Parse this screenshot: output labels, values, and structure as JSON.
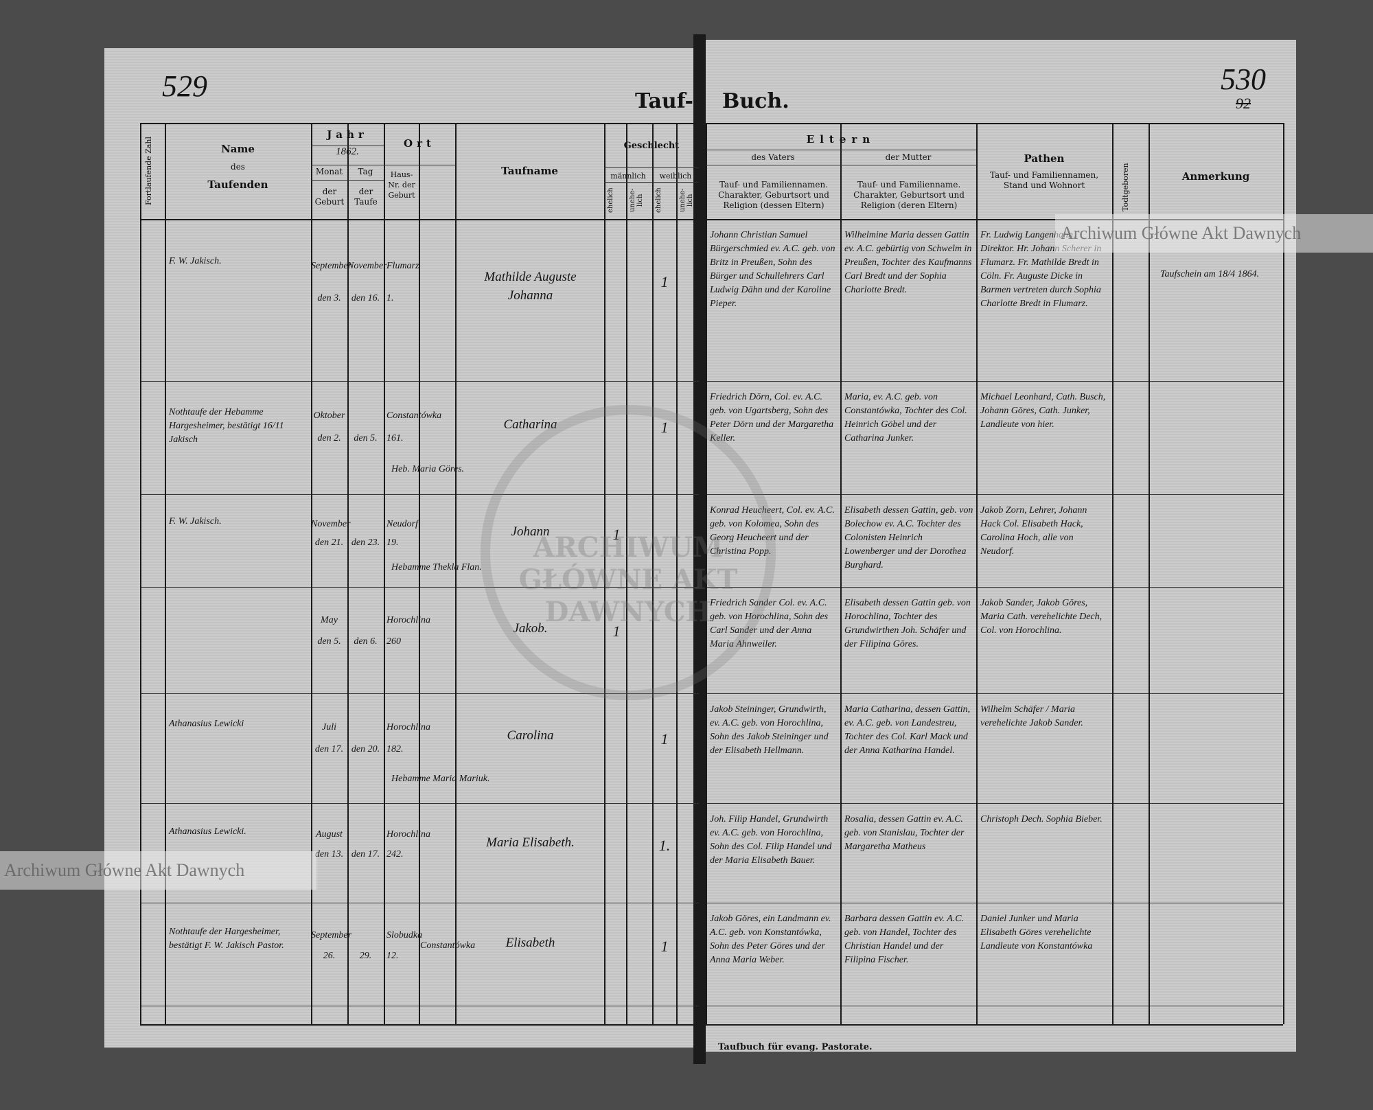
{
  "title": {
    "left": "Tauf-",
    "right": "Buch."
  },
  "page_numbers": {
    "left": "529",
    "right": "530",
    "right_old_crossed": "92"
  },
  "watermark": "Archiwum Główne Akt Dawnych",
  "seal_text": "ARCHIWUM GŁÓWNE AKT DAWNYCH",
  "footer": "Taufbuch für evang. Pastorate.",
  "headers": {
    "fortlaufende_zahl": "Fortlaufende Zahl",
    "name": [
      "Name",
      "des",
      "Taufenden"
    ],
    "jahr": "Jahr",
    "year_value": "1862.",
    "monat": "Monat",
    "tag": "Tag",
    "der_geburt": "der Geburt",
    "der_taufe": "der Taufe",
    "ort": "Ort",
    "haus_nr_geburt": "Haus-Nr. der Geburt",
    "ort_der_taufe": "der Taufe",
    "taufname": "Taufname",
    "geschlecht": "Geschlecht",
    "maennlich": "männlich",
    "weiblich": "weiblich",
    "ehelich": "ehelich",
    "unehelich": "unehe-lich",
    "eltern": "Eltern",
    "des_vaters": "des Vaters",
    "der_mutter": "der Mutter",
    "vater_desc": "Tauf- und Familiennamen. Charakter, Geburtsort und Religion (dessen Eltern)",
    "mutter_desc": "Tauf- und Familienname. Charakter, Geburtsort und Religion (deren Eltern)",
    "pathen": "Pathen",
    "pathen_desc": "Tauf- und Familiennamen, Stand und Wohnort",
    "todtgeboren": "Todtgeboren",
    "anmerkung": "Anmerkung"
  },
  "entries": [
    {
      "name": "F. W. Jakisch.",
      "monat": "September",
      "tag": "November",
      "geburt_tag": "den 3.",
      "taufe_tag": "den 16.",
      "ort": "Flumarz",
      "haus_nr": "1.",
      "ort_taufe": "",
      "taufname": "Mathilde Auguste Johanna",
      "hebamme": "",
      "gender_col": 2,
      "mark": "1",
      "vater": "Johann Christian Samuel Bürgerschmied ev. A.C. geb. von Britz in Preußen, Sohn des Bürger und Schullehrers Carl Ludwig Dähn und der Karoline Pieper.",
      "mutter": "Wilhelmine Maria dessen Gattin ev. A.C. gebürtig von Schwelm in Preußen, Tochter des Kaufmanns Carl Bredt und der Sophia Charlotte Bredt.",
      "pathen": "Fr. Ludwig Langenhahn, Direktor. Hr. Johann Scherer in Flumarz. Fr. Mathilde Bredt in Cöln. Fr. Auguste Dicke in Barmen vertreten durch Sophia Charlotte Bredt in Flumarz.",
      "anmerkung": "Taufschein am 18/4 1864."
    },
    {
      "name": "Nothtaufe der Hebamme Hargesheimer, bestätigt 16/11 Jakisch",
      "monat": "Oktober",
      "tag": "",
      "geburt_tag": "den 2.",
      "taufe_tag": "den 5.",
      "ort": "Constantówka",
      "haus_nr": "161.",
      "ort_taufe": "",
      "taufname": "Catharina",
      "hebamme": "Heb. Maria Göres.",
      "gender_col": 2,
      "mark": "1",
      "vater": "Friedrich Dörn, Col. ev. A.C. geb. von Ugartsberg, Sohn des Peter Dörn und der Margaretha Keller.",
      "mutter": "Maria, ev. A.C. geb. von Constantówka, Tochter des Col. Heinrich Göbel und der Catharina Junker.",
      "pathen": "Michael Leonhard, Cath. Busch, Johann Göres, Cath. Junker, Landleute von hier.",
      "anmerkung": ""
    },
    {
      "name": "F. W. Jakisch.",
      "monat": "November",
      "tag": "",
      "geburt_tag": "den 21.",
      "taufe_tag": "den 23.",
      "ort": "Neudorf",
      "haus_nr": "19.",
      "ort_taufe": "",
      "taufname": "Johann",
      "hebamme": "Hebamme Thekla Flan.",
      "gender_col": 0,
      "mark": "1",
      "vater": "Konrad Heucheert, Col. ev. A.C. geb. von Kolomea, Sohn des Georg Heucheert und der Christina Popp.",
      "mutter": "Elisabeth dessen Gattin, geb. von Bolechow ev. A.C. Tochter des Colonisten Heinrich Lowenberger und der Dorothea Burghard.",
      "pathen": "Jakob Zorn, Lehrer, Johann Hack Col. Elisabeth Hack, Carolina Hoch, alle von Neudorf.",
      "anmerkung": ""
    },
    {
      "name": "",
      "monat": "May",
      "tag": "",
      "geburt_tag": "den 5.",
      "taufe_tag": "den 6.",
      "ort": "Horochlina",
      "haus_nr": "260",
      "ort_taufe": "",
      "taufname": "Jakob.",
      "hebamme": "",
      "gender_col": 0,
      "mark": "1",
      "vater": "Friedrich Sander Col. ev. A.C. geb. von Horochlina, Sohn des Carl Sander und der Anna Maria Ahnweiler.",
      "mutter": "Elisabeth dessen Gattin geb. von Horochlina, Tochter des Grundwirthen Joh. Schäfer und der Filipina Göres.",
      "pathen": "Jakob Sander, Jakob Göres, Maria Cath. verehelichte Dech, Col. von Horochlina.",
      "anmerkung": ""
    },
    {
      "name": "Athanasius Lewicki",
      "monat": "Juli",
      "tag": "",
      "geburt_tag": "den 17.",
      "taufe_tag": "den 20.",
      "ort": "Horochlina",
      "haus_nr": "182.",
      "ort_taufe": "",
      "taufname": "Carolina",
      "hebamme": "Hebamme Maria Mariuk.",
      "gender_col": 2,
      "mark": "1",
      "vater": "Jakob Steininger, Grundwirth, ev. A.C. geb. von Horochlina, Sohn des Jakob Steininger und der Elisabeth Hellmann.",
      "mutter": "Maria Catharina, dessen Gattin, ev. A.C. geb. von Landestreu, Tochter des Col. Karl Mack und der Anna Katharina Handel.",
      "pathen": "Wilhelm Schäfer / Maria verehelichte Jakob Sander.",
      "anmerkung": ""
    },
    {
      "name": "Athanasius Lewicki.",
      "monat": "August",
      "tag": "",
      "geburt_tag": "den 13.",
      "taufe_tag": "den 17.",
      "ort": "Horochlina",
      "haus_nr": "242.",
      "ort_taufe": "",
      "taufname": "Maria Elisabeth.",
      "hebamme": "",
      "gender_col": 2,
      "mark": "1.",
      "vater": "Joh. Filip Handel, Grundwirth ev. A.C. geb. von Horochlina, Sohn des Col. Filip Handel und der Maria Elisabeth Bauer.",
      "mutter": "Rosalia, dessen Gattin ev. A.C. geb. von Stanislau, Tochter der Margaretha Matheus",
      "pathen": "Christoph Dech. Sophia Bieber.",
      "anmerkung": ""
    },
    {
      "name": "Nothtaufe der Hargesheimer, bestätigt F. W. Jakisch Pastor.",
      "monat": "September",
      "tag": "",
      "geburt_tag": "26.",
      "taufe_tag": "29.",
      "ort": "Slobudka",
      "haus_nr": "12.",
      "ort_taufe": "Constantówka",
      "taufname": "Elisabeth",
      "hebamme": "",
      "gender_col": 2,
      "mark": "1",
      "vater": "Jakob Göres, ein Landmann ev. A.C. geb. von Konstantówka, Sohn des Peter Göres und der Anna Maria Weber.",
      "mutter": "Barbara dessen Gattin ev. A.C. geb. von Handel, Tochter des Christian Handel und der Filipina Fischer.",
      "pathen": "Daniel Junker und Maria Elisabeth Göres verehelichte Landleute von Konstantówka",
      "anmerkung": ""
    }
  ]
}
